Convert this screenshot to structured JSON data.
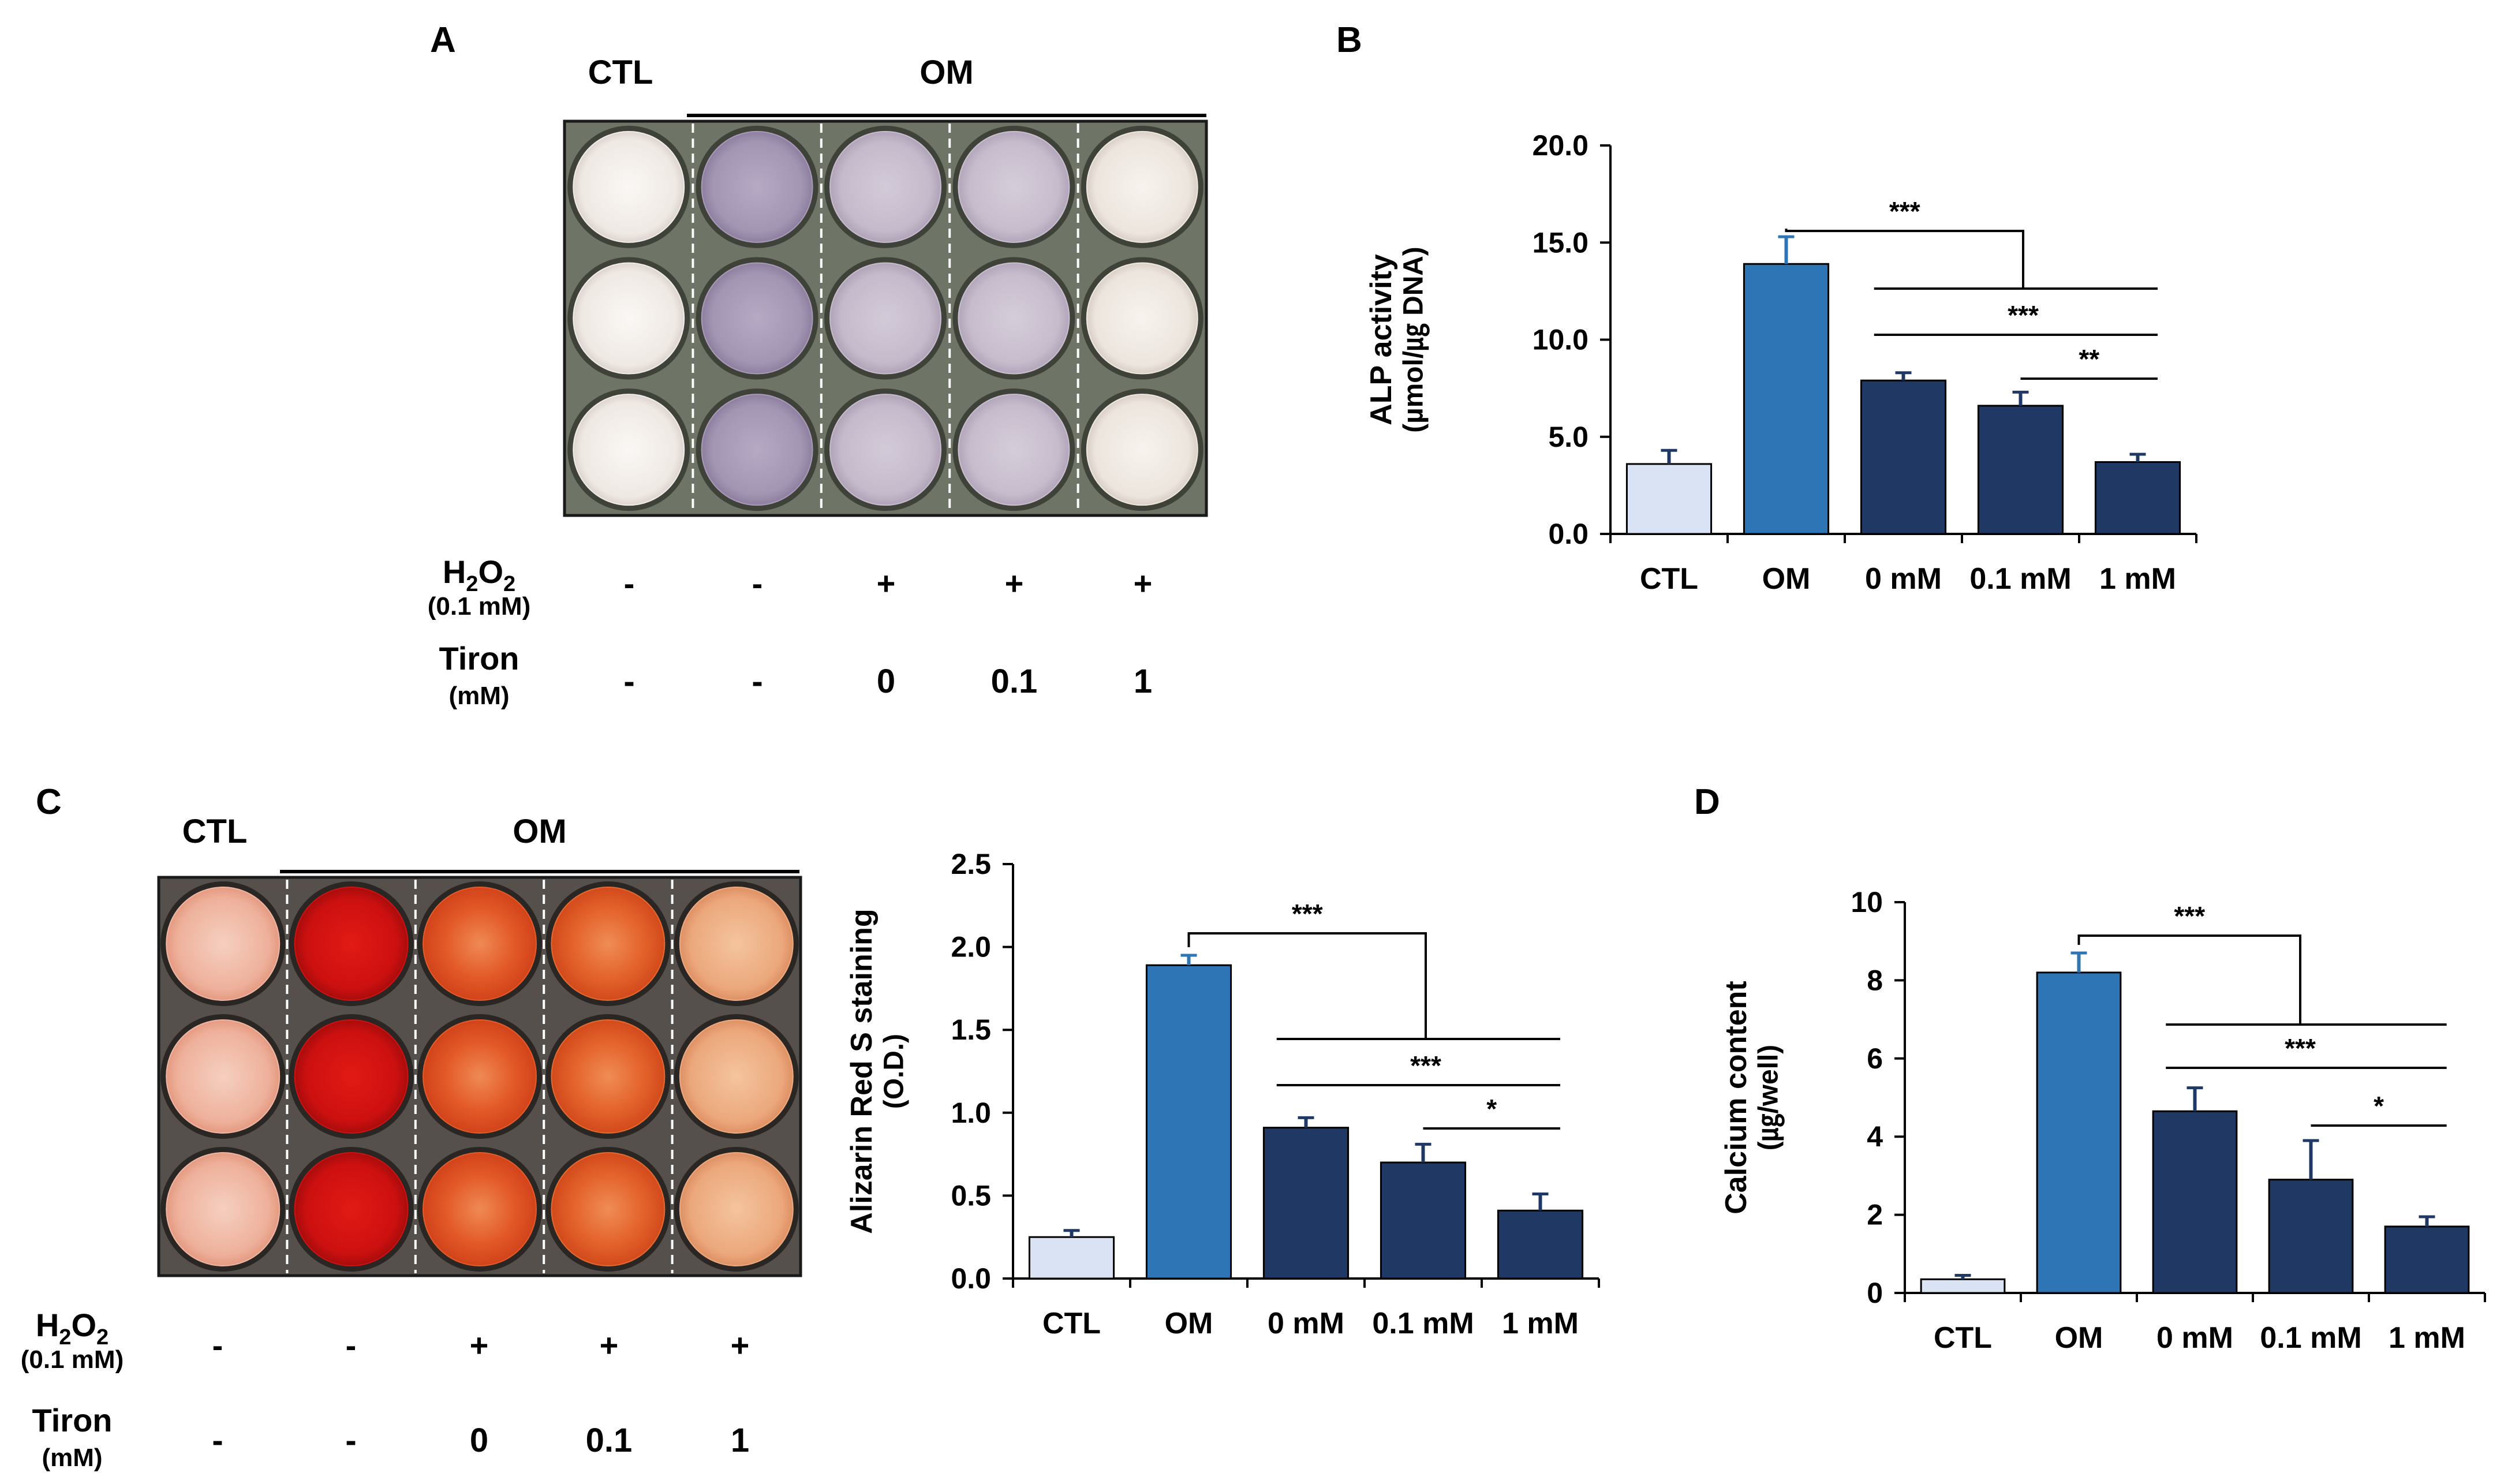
{
  "panels": {
    "a": {
      "label": "A",
      "group_ctl": "CTL",
      "group_om": "OM",
      "h2o2_label": "H",
      "h2o2_sub1": "2",
      "h2o2_o": "O",
      "h2o2_sub2": "2",
      "h2o2_conc": "(0.1 mM)",
      "tiron_label": "Tiron",
      "tiron_unit": "(mM)",
      "h2o2_values": [
        "-",
        "-",
        "+",
        "+",
        "+"
      ],
      "tiron_values": [
        "-",
        "-",
        "0",
        "0.1",
        "1"
      ]
    },
    "b": {
      "label": "B"
    },
    "c": {
      "label": "C",
      "group_ctl": "CTL",
      "group_om": "OM",
      "h2o2_label": "H",
      "h2o2_sub1": "2",
      "h2o2_o": "O",
      "h2o2_sub2": "2",
      "h2o2_conc": "(0.1 mM)",
      "tiron_label": "Tiron",
      "tiron_unit": "(mM)",
      "h2o2_values": [
        "-",
        "-",
        "+",
        "+",
        "+"
      ],
      "tiron_values": [
        "-",
        "-",
        "0",
        "0.1",
        "1"
      ]
    },
    "d": {
      "label": "D"
    }
  },
  "plates": {
    "alp": {
      "colors": [
        "#f1ece8",
        "#a89ab8",
        "#c7bccd",
        "#c9bfcf",
        "#eee8e2"
      ]
    },
    "ars": {
      "colors": [
        "#efb7a3",
        "#d01212",
        "#e45c2a",
        "#e56a2e",
        "#eeaa7e"
      ]
    }
  },
  "chart_data": [
    {
      "id": "B",
      "type": "bar",
      "categories": [
        "CTL",
        "OM",
        "0 mM",
        "0.1 mM",
        "1 mM"
      ],
      "values": [
        3.6,
        13.9,
        7.9,
        6.6,
        3.7
      ],
      "errors": [
        0.7,
        1.4,
        0.4,
        0.7,
        0.4
      ],
      "bar_colors": [
        "#dae3f3",
        "#2e75b6",
        "#203864",
        "#203864",
        "#203864"
      ],
      "ylabel": "ALP activity",
      "ylabel2": "(µmol/㎍ DNA)",
      "ylim": [
        0,
        20
      ],
      "yticks": [
        0,
        5,
        10,
        15,
        20
      ],
      "ytick_labels": [
        "0.0",
        "5.0",
        "10.0",
        "15.0",
        "20.0"
      ],
      "significance": [
        {
          "type": "bracket",
          "from": 1,
          "to": 4,
          "label": "***"
        },
        {
          "type": "line",
          "from": 2,
          "to": 4,
          "label": "***"
        },
        {
          "type": "line",
          "from": 3,
          "to": 4,
          "label": "**"
        }
      ]
    },
    {
      "id": "C",
      "type": "bar",
      "categories": [
        "CTL",
        "OM",
        "0 mM",
        "0.1 mM",
        "1 mM"
      ],
      "values": [
        0.25,
        1.89,
        0.91,
        0.7,
        0.41
      ],
      "errors": [
        0.04,
        0.06,
        0.06,
        0.11,
        0.1
      ],
      "bar_colors": [
        "#dae3f3",
        "#2e75b6",
        "#203864",
        "#203864",
        "#203864"
      ],
      "ylabel": "Alizarin Red S staining",
      "ylabel2": "(O.D.)",
      "ylim": [
        0,
        2.5
      ],
      "yticks": [
        0,
        0.5,
        1.0,
        1.5,
        2.0,
        2.5
      ],
      "ytick_labels": [
        "0.0",
        "0.5",
        "1.0",
        "1.5",
        "2.0",
        "2.5"
      ],
      "significance": [
        {
          "type": "bracket",
          "from": 1,
          "to": 4,
          "label": "***"
        },
        {
          "type": "line",
          "from": 2,
          "to": 4,
          "label": "***"
        },
        {
          "type": "line",
          "from": 3,
          "to": 4,
          "label": "*"
        }
      ]
    },
    {
      "id": "D",
      "type": "bar",
      "categories": [
        "CTL",
        "OM",
        "0 mM",
        "0.1 mM",
        "1 mM"
      ],
      "values": [
        0.35,
        8.2,
        4.65,
        2.9,
        1.7
      ],
      "errors": [
        0.1,
        0.5,
        0.6,
        1.0,
        0.25
      ],
      "bar_colors": [
        "#dae3f3",
        "#2e75b6",
        "#203864",
        "#203864",
        "#203864"
      ],
      "ylabel": "Calcium content",
      "ylabel2": "(㎍/well)",
      "ylim": [
        0,
        10
      ],
      "yticks": [
        0,
        2,
        4,
        6,
        8,
        10
      ],
      "ytick_labels": [
        "0",
        "2",
        "4",
        "6",
        "8",
        "10"
      ],
      "significance": [
        {
          "type": "bracket",
          "from": 1,
          "to": 4,
          "label": "***"
        },
        {
          "type": "line",
          "from": 2,
          "to": 4,
          "label": "***"
        },
        {
          "type": "line",
          "from": 3,
          "to": 4,
          "label": "*"
        }
      ]
    }
  ]
}
